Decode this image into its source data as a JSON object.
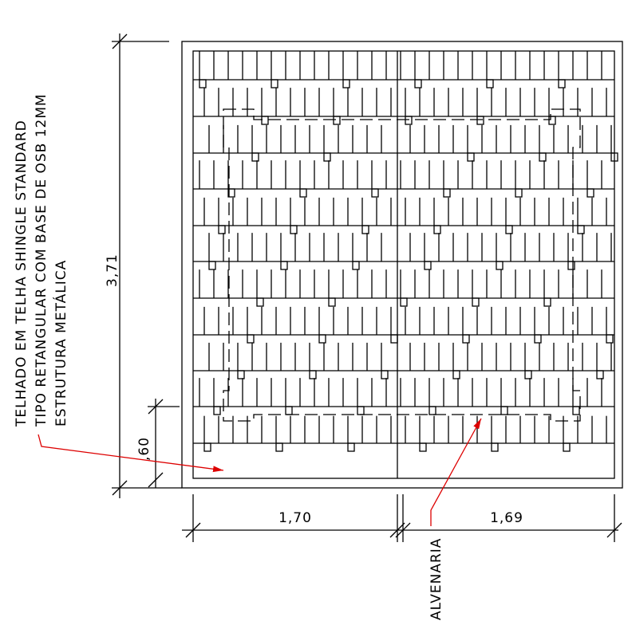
{
  "annotation": {
    "lines": [
      "TELHADO EM TELHA SHINGLE STANDARD",
      "TIPO RETANGULAR  COM BASE DE OSB  12MM",
      "ESTRUTURA METÁLICA"
    ]
  },
  "dimensions": {
    "height": "3,71",
    "overhang": ",60",
    "left_width": "1,70",
    "right_width": "1,69"
  },
  "labels": {
    "wall": "ALVENARIA"
  }
}
